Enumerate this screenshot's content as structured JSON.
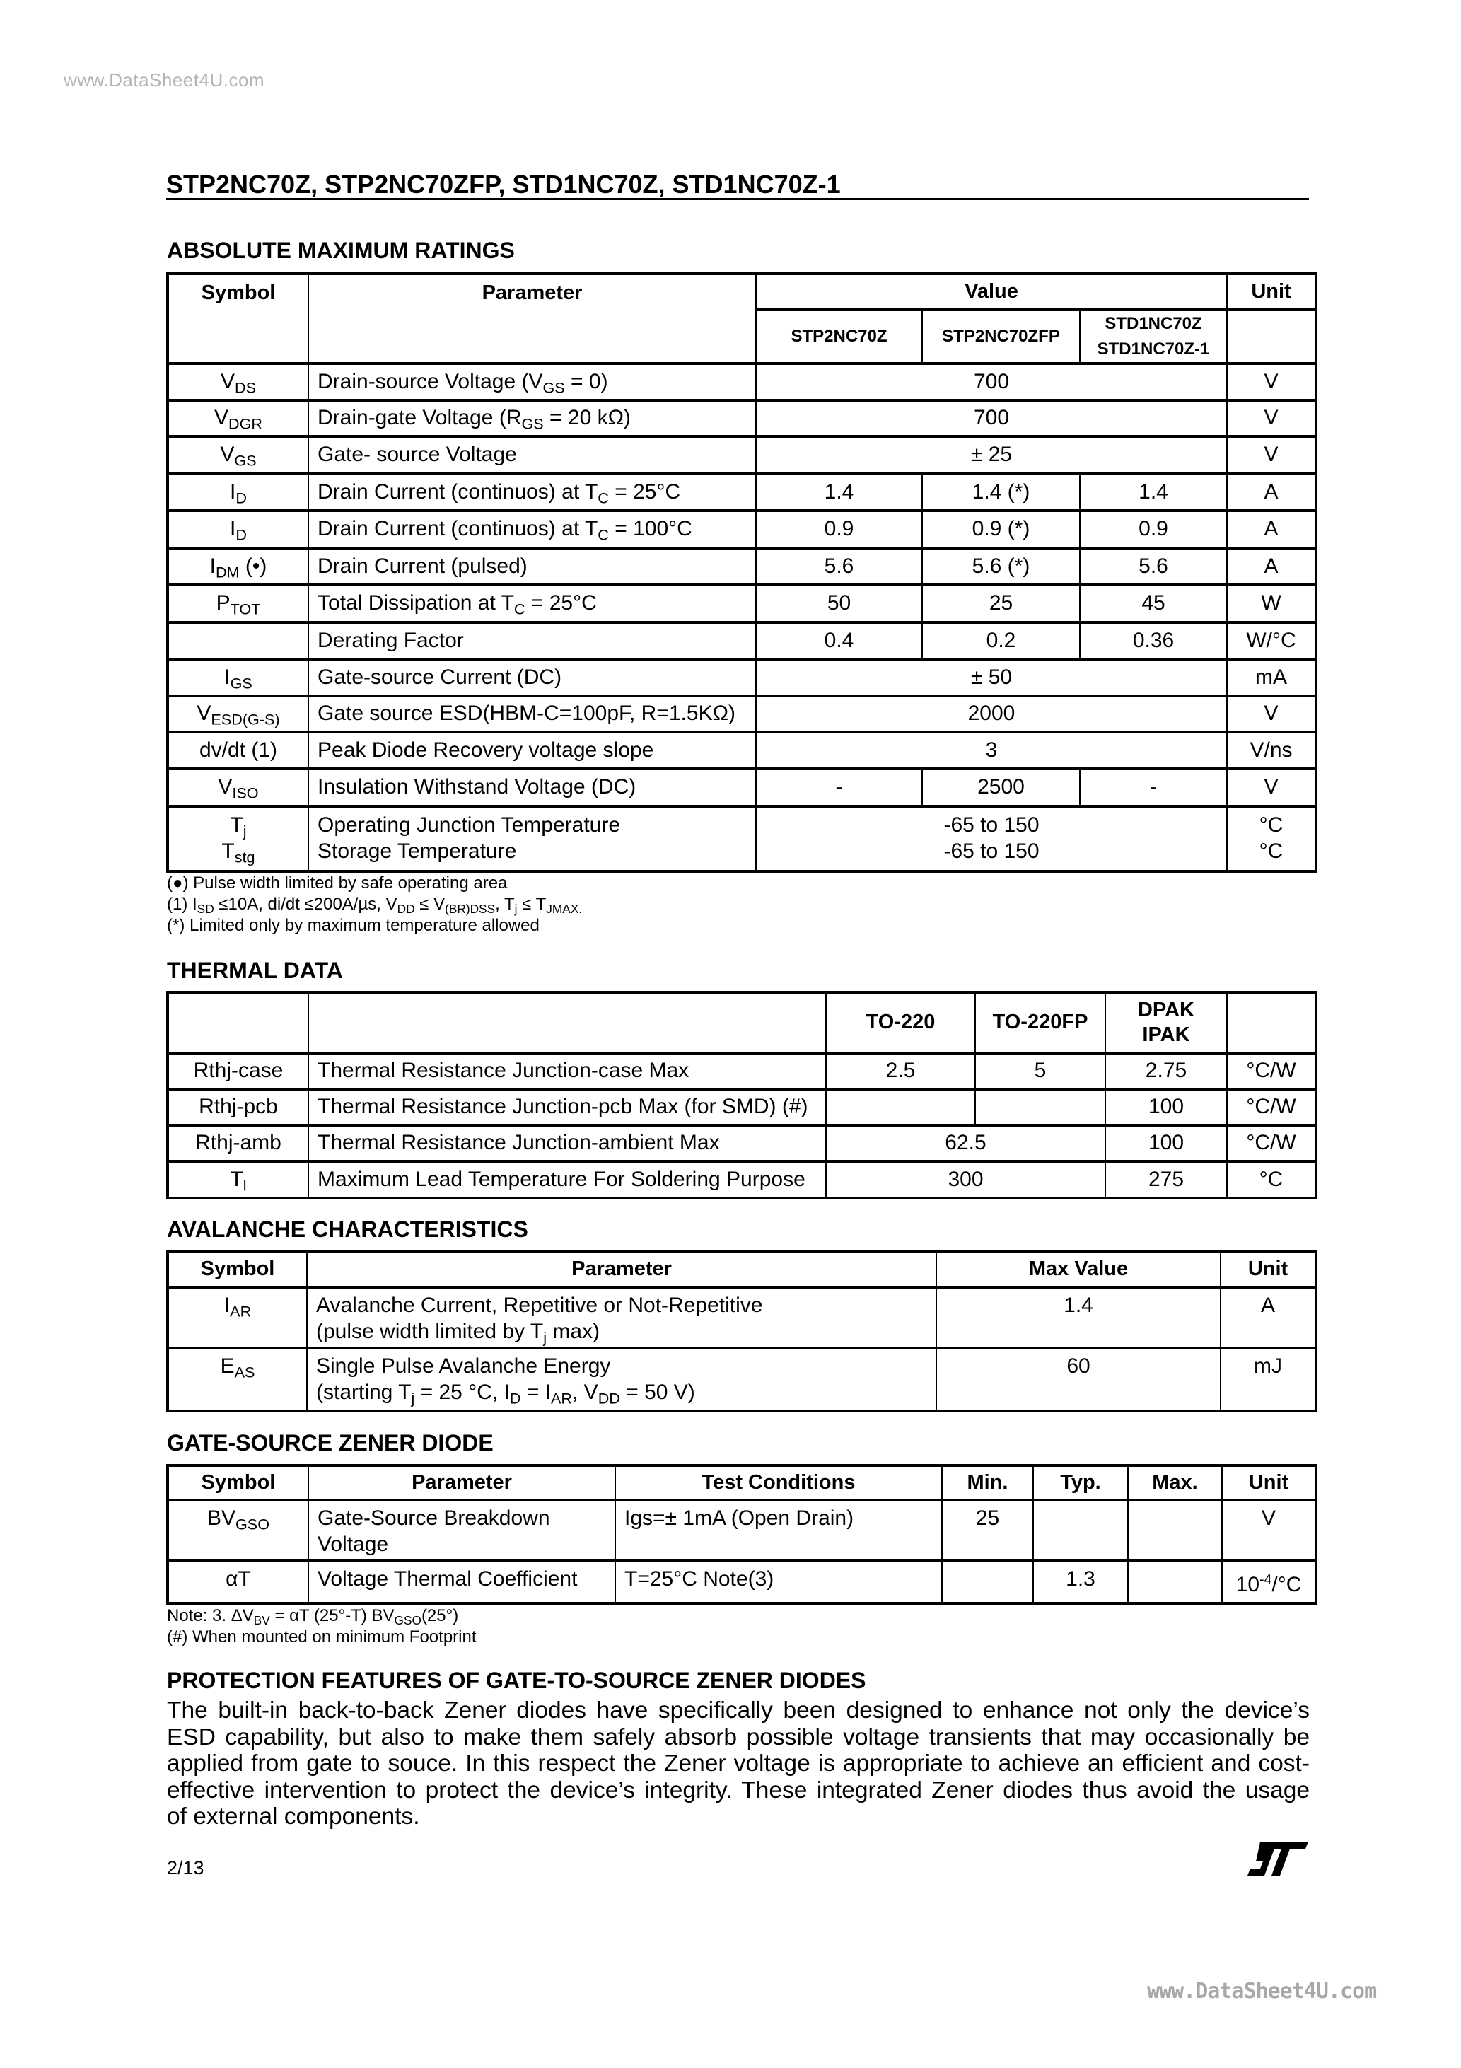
{
  "watermark_top": "www.DataSheet4U.com",
  "watermark_bottom": "www.DataSheet4U.com",
  "header": {
    "title": "STP2NC70Z, STP2NC70ZFP, STD1NC70Z, STD1NC70Z-1"
  },
  "absolute_max": {
    "heading": "ABSOLUTE MAXIMUM RATINGS",
    "headers": {
      "symbol": "Symbol",
      "parameter": "Parameter",
      "value": "Value",
      "unit": "Unit",
      "devices": [
        "STP2NC70Z",
        "STP2NC70ZFP",
        {
          "lines": [
            "STD1NC70Z",
            "STD1NC70Z-1"
          ]
        }
      ]
    },
    "rows": [
      {
        "symbol": [
          "V",
          {
            "sub": "DS"
          }
        ],
        "parameter": [
          "Drain-source Voltage (V",
          {
            "sub": "GS"
          },
          " = 0)"
        ],
        "values": [
          "700",
          null,
          null
        ],
        "unit": "V"
      },
      {
        "symbol": [
          "V",
          {
            "sub": "DGR"
          }
        ],
        "parameter": [
          "Drain-gate Voltage (R",
          {
            "sub": "GS"
          },
          " = 20 kΩ)"
        ],
        "values": [
          "700",
          null,
          null
        ],
        "unit": "V"
      },
      {
        "symbol": [
          "V",
          {
            "sub": "GS"
          }
        ],
        "parameter": "Gate- source Voltage",
        "values": [
          "± 25",
          null,
          null
        ],
        "unit": "V"
      },
      {
        "symbol": [
          "I",
          {
            "sub": "D"
          }
        ],
        "parameter": [
          "Drain Current (continuos) at T",
          {
            "sub": "C"
          },
          " = 25°C"
        ],
        "values": [
          "1.4",
          "1.4 (*)",
          "1.4"
        ],
        "unit": "A"
      },
      {
        "symbol": [
          "I",
          {
            "sub": "D"
          }
        ],
        "parameter": [
          "Drain Current (continuos) at T",
          {
            "sub": "C"
          },
          " = 100°C"
        ],
        "values": [
          "0.9",
          "0.9 (*)",
          "0.9"
        ],
        "unit": "A"
      },
      {
        "symbol": [
          "I",
          {
            "sub": "DM"
          },
          " (•)"
        ],
        "parameter": "Drain Current (pulsed)",
        "values": [
          "5.6",
          "5.6 (*)",
          "5.6"
        ],
        "unit": "A"
      },
      {
        "symbol": [
          "P",
          {
            "sub": "TOT"
          }
        ],
        "parameter": [
          "Total Dissipation at T",
          {
            "sub": "C"
          },
          " = 25°C"
        ],
        "values": [
          "50",
          "25",
          "45"
        ],
        "unit": "W"
      },
      {
        "symbol": "",
        "parameter": "Derating Factor",
        "values": [
          "0.4",
          "0.2",
          "0.36"
        ],
        "unit": "W/°C"
      },
      {
        "symbol": [
          "I",
          {
            "sub": "GS"
          }
        ],
        "parameter": "Gate-source Current (DC)",
        "values": [
          "± 50",
          null,
          null
        ],
        "unit": "mA"
      },
      {
        "symbol": [
          "V",
          {
            "sub": "ESD(G-S)"
          }
        ],
        "parameter": "Gate source ESD(HBM-C=100pF, R=1.5KΩ)",
        "values": [
          "2000",
          null,
          null
        ],
        "unit": "V"
      },
      {
        "symbol": "dv/dt (1)",
        "parameter": "Peak Diode Recovery voltage slope",
        "values": [
          "3",
          null,
          null
        ],
        "unit": "V/ns"
      },
      {
        "symbol": [
          "V",
          {
            "sub": "ISO"
          }
        ],
        "parameter": "Insulation Withstand Voltage (DC)",
        "values": [
          "-",
          "2500",
          "-"
        ],
        "unit": "V"
      },
      {
        "symbol": {
          "lines": [
            [
              "T",
              {
                "sub": "j"
              }
            ],
            [
              "T",
              {
                "sub": "stg"
              }
            ]
          ]
        },
        "parameter": {
          "lines": [
            "Operating Junction Temperature",
            "Storage Temperature"
          ]
        },
        "values": [
          {
            "lines": [
              "-65 to 150",
              "-65 to 150"
            ]
          },
          null,
          null
        ],
        "unit": {
          "lines": [
            "°C",
            "°C"
          ]
        }
      }
    ],
    "footnotes": [
      "(●) Pulse width limited by safe operating area",
      [
        "(1) I",
        {
          "sub": "SD"
        },
        " ≤10A, di/dt ≤200A/µs, V",
        {
          "sub": "DD"
        },
        " ≤ V",
        {
          "sub": "(BR)DSS"
        },
        ", T",
        {
          "sub": "j"
        },
        " ≤ T",
        {
          "sub": "JMAX."
        }
      ],
      "(*) Limited only by maximum temperature allowed"
    ]
  },
  "thermal": {
    "heading": "THERMAL DATA",
    "headers": [
      "TO-220",
      "TO-220FP",
      {
        "lines": [
          "DPAK",
          "IPAK"
        ]
      }
    ],
    "rows": [
      {
        "symbol": "Rthj-case",
        "parameter": "Thermal Resistance Junction-case Max",
        "values": [
          "2.5",
          "5",
          "2.75"
        ],
        "unit": "°C/W"
      },
      {
        "symbol": "Rthj-pcb",
        "parameter": "Thermal Resistance Junction-pcb Max (for SMD) (#)",
        "values": [
          "",
          "",
          "100"
        ],
        "unit": "°C/W"
      },
      {
        "symbol": "Rthj-amb",
        "parameter": "Thermal Resistance Junction-ambient Max",
        "values": [
          "62.5",
          null,
          "100"
        ],
        "unit": "°C/W"
      },
      {
        "symbol": [
          "T",
          {
            "sub": "l"
          }
        ],
        "parameter": "Maximum Lead Temperature For Soldering Purpose",
        "values": [
          "300",
          null,
          "275"
        ],
        "unit": "°C"
      }
    ]
  },
  "avalanche": {
    "heading": "AVALANCHE CHARACTERISTICS",
    "headers": {
      "symbol": "Symbol",
      "parameter": "Parameter",
      "max_value": "Max Value",
      "unit": "Unit"
    },
    "rows": [
      {
        "symbol": [
          "I",
          {
            "sub": "AR"
          }
        ],
        "parameter": {
          "lines": [
            "Avalanche Current, Repetitive or Not-Repetitive",
            [
              "(pulse width limited by T",
              {
                "sub": "j"
              },
              " max)"
            ]
          ]
        },
        "values": [
          "1.4"
        ],
        "unit": "A"
      },
      {
        "symbol": [
          "E",
          {
            "sub": "AS"
          }
        ],
        "parameter": {
          "lines": [
            "Single Pulse Avalanche Energy",
            [
              "(starting T",
              {
                "sub": "j"
              },
              " = 25 °C, I",
              {
                "sub": "D"
              },
              " = I",
              {
                "sub": "AR"
              },
              ", V",
              {
                "sub": "DD"
              },
              " = 50 V)"
            ]
          ]
        },
        "values": [
          "60"
        ],
        "unit": "mJ"
      }
    ]
  },
  "zener": {
    "heading": "GATE-SOURCE ZENER DIODE",
    "headers": {
      "symbol": "Symbol",
      "parameter": "Parameter",
      "test_conditions": "Test Conditions",
      "min": "Min.",
      "typ": "Typ.",
      "max": "Max.",
      "unit": "Unit"
    },
    "rows": [
      {
        "symbol": [
          "BV",
          {
            "sub": "GSO"
          }
        ],
        "parameter": {
          "lines": [
            "Gate-Source Breakdown",
            "Voltage"
          ]
        },
        "test_conditions": "Igs=± 1mA (Open Drain)",
        "values": [
          "25",
          "",
          ""
        ],
        "unit": "V"
      },
      {
        "symbol": "αT",
        "parameter": "Voltage Thermal Coefficient",
        "test_conditions": "T=25°C Note(3)",
        "values": [
          "",
          "1.3",
          ""
        ],
        "unit": [
          "10",
          {
            "sup": "-4"
          },
          "/°C"
        ]
      }
    ],
    "notes": [
      [
        "Note: 3. ΔV",
        {
          "sub": "BV"
        },
        " = αT (25°-T) BV",
        {
          "sub": "GSO"
        },
        "(25°)"
      ],
      "(#) When mounted on minimum Footprint"
    ]
  },
  "protection": {
    "heading": "PROTECTION FEATURES OF GATE-TO-SOURCE ZENER DIODES",
    "lines": [
      "The built-in back-to-back Zener diodes have specifically been designed to enhance not only the device’s",
      "ESD capability, but also to make them safely absorb possible voltage transients that may occasionally be",
      "applied from gate to souce. In this respect the Zener voltage is appropriate to achieve an efficient and cost-",
      "effective intervention to protect the device’s integrity. These integrated Zener diodes thus avoid the usage",
      "of external components."
    ]
  },
  "footer": {
    "page": "2/13",
    "logo_text": "ST"
  }
}
